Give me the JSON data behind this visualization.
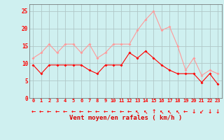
{
  "x": [
    0,
    1,
    2,
    3,
    4,
    5,
    6,
    7,
    8,
    9,
    10,
    11,
    12,
    13,
    14,
    15,
    16,
    17,
    18,
    19,
    20,
    21,
    22,
    23
  ],
  "wind_avg": [
    9.5,
    7.0,
    9.5,
    9.5,
    9.5,
    9.5,
    9.5,
    8.0,
    7.0,
    9.5,
    9.5,
    9.5,
    13.0,
    11.5,
    13.5,
    11.5,
    9.5,
    8.0,
    7.0,
    7.0,
    7.0,
    4.5,
    7.0,
    4.0
  ],
  "wind_gust": [
    11.5,
    13.0,
    15.5,
    13.0,
    15.5,
    15.5,
    13.0,
    15.5,
    11.5,
    13.0,
    15.5,
    15.5,
    15.5,
    19.5,
    22.5,
    25.0,
    19.5,
    20.5,
    15.0,
    8.0,
    11.5,
    6.5,
    8.0,
    7.0
  ],
  "color_avg": "#ff0000",
  "color_gust": "#ff9999",
  "bg_color": "#cff0f0",
  "grid_color": "#b0c8c8",
  "xlabel": "Vent moyen/en rafales ( km/h )",
  "xlabel_color": "#dd0000",
  "tick_color": "#ff0000",
  "ylim": [
    0,
    27
  ],
  "yticks": [
    0,
    5,
    10,
    15,
    20,
    25
  ],
  "ytick_labels": [
    "0",
    "5",
    "10",
    "15",
    "20",
    "25"
  ],
  "arrow_row": [
    "←",
    "←",
    "←",
    "←",
    "←",
    "←",
    "←",
    "←",
    "←",
    "←",
    "←",
    "←",
    "←",
    "↖",
    "↖",
    "↑",
    "↖",
    "↖",
    "↖",
    "←",
    "↓",
    "↙",
    "↓",
    "↓"
  ]
}
